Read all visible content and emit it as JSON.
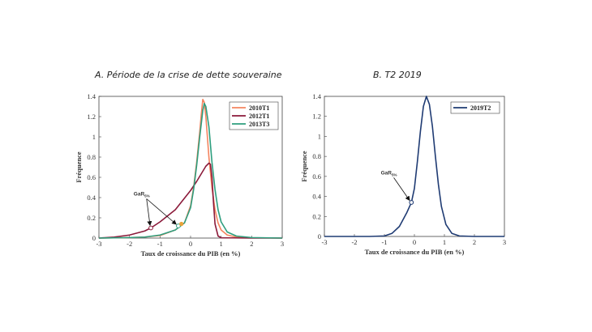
{
  "chart_data": [
    {
      "id": "A",
      "type": "line",
      "title": "A.   Période de la crise de dette souveraine",
      "xlabel": "Taux de croissance du PIB (en %)",
      "ylabel": "Fréquence",
      "xlim": [
        -3,
        3
      ],
      "ylim": [
        0,
        1.4
      ],
      "xticks": [
        -3,
        -2,
        -1,
        0,
        1,
        2,
        3
      ],
      "yticks": [
        0,
        0.2,
        0.4,
        0.6,
        0.8,
        1,
        1.2,
        1.4
      ],
      "legend_position": "top-right",
      "series": [
        {
          "name": "2010T1",
          "color": "#f4845f",
          "x": [
            -3,
            -2,
            -1.5,
            -1,
            -0.5,
            -0.2,
            0,
            0.1,
            0.2,
            0.3,
            0.35,
            0.4,
            0.45,
            0.5,
            0.55,
            0.6,
            0.7,
            0.8,
            0.9,
            1,
            1.2,
            1.5,
            2,
            3
          ],
          "y": [
            0,
            0.005,
            0.01,
            0.025,
            0.08,
            0.15,
            0.32,
            0.5,
            0.75,
            1.05,
            1.22,
            1.37,
            1.34,
            1.2,
            1.0,
            0.8,
            0.5,
            0.28,
            0.15,
            0.08,
            0.03,
            0.01,
            0.003,
            0
          ]
        },
        {
          "name": "2012T1",
          "color": "#8b1a3a",
          "x": [
            -3,
            -2.5,
            -2,
            -1.5,
            -1.3,
            -1,
            -0.5,
            0,
            0.2,
            0.4,
            0.5,
            0.6,
            0.65,
            0.7,
            0.75,
            0.8,
            0.9,
            1,
            2,
            3
          ],
          "y": [
            0,
            0.01,
            0.03,
            0.07,
            0.1,
            0.16,
            0.28,
            0.47,
            0.56,
            0.66,
            0.71,
            0.74,
            0.73,
            0.6,
            0.35,
            0.14,
            0.02,
            0.003,
            0,
            0
          ],
          "markers": [
            {
              "x": -1.3,
              "y": 0.1
            }
          ]
        },
        {
          "name": "2013T3",
          "color": "#2e9e7e",
          "x": [
            -3,
            -2,
            -1.5,
            -1,
            -0.5,
            -0.2,
            0,
            0.1,
            0.2,
            0.3,
            0.4,
            0.45,
            0.5,
            0.6,
            0.7,
            0.8,
            0.9,
            1,
            1.2,
            1.5,
            2,
            3
          ],
          "y": [
            0,
            0.005,
            0.01,
            0.03,
            0.08,
            0.15,
            0.3,
            0.48,
            0.72,
            1.0,
            1.26,
            1.33,
            1.3,
            1.1,
            0.75,
            0.48,
            0.28,
            0.16,
            0.06,
            0.02,
            0.005,
            0
          ],
          "markers": [
            {
              "x": -0.4,
              "y": 0.12
            }
          ]
        }
      ],
      "annotation": {
        "label": "GaR",
        "subscript": "5%",
        "x": -1.6,
        "y": 0.42,
        "arrows_to": [
          {
            "x": -1.3,
            "y": 0.1
          },
          {
            "x": -0.4,
            "y": 0.12
          }
        ]
      },
      "extra_markers": [
        {
          "x": -0.3,
          "y": 0.14,
          "color": "#e8a33a"
        }
      ]
    },
    {
      "id": "B",
      "type": "line",
      "title": "B.   T2 2019",
      "xlabel": "Taux de croissance du PIB (en %)",
      "ylabel": "Fréquence",
      "xlim": [
        -3,
        3
      ],
      "ylim": [
        0,
        1.4
      ],
      "xticks": [
        -3,
        -2,
        -1,
        0,
        1,
        2,
        3
      ],
      "yticks": [
        0,
        0.2,
        0.4,
        0.6,
        0.8,
        1,
        1.2,
        1.4
      ],
      "legend_position": "top-right",
      "series": [
        {
          "name": "2019T2",
          "color": "#1f3b73",
          "x": [
            -3,
            -1.5,
            -1,
            -0.75,
            -0.5,
            -0.25,
            -0.1,
            0,
            0.1,
            0.2,
            0.3,
            0.4,
            0.5,
            0.6,
            0.7,
            0.8,
            0.9,
            1.05,
            1.25,
            1.5,
            2,
            3
          ],
          "y": [
            0,
            0,
            0.005,
            0.03,
            0.1,
            0.24,
            0.34,
            0.48,
            0.75,
            1.05,
            1.3,
            1.4,
            1.32,
            1.1,
            0.8,
            0.52,
            0.3,
            0.12,
            0.03,
            0.005,
            0,
            0
          ],
          "markers": [
            {
              "x": -0.1,
              "y": 0.34
            }
          ]
        }
      ],
      "annotation": {
        "label": "GaR",
        "subscript": "5%",
        "x": -0.85,
        "y": 0.62,
        "arrows_to": [
          {
            "x": -0.1,
            "y": 0.34
          }
        ]
      },
      "extra_markers": []
    }
  ]
}
